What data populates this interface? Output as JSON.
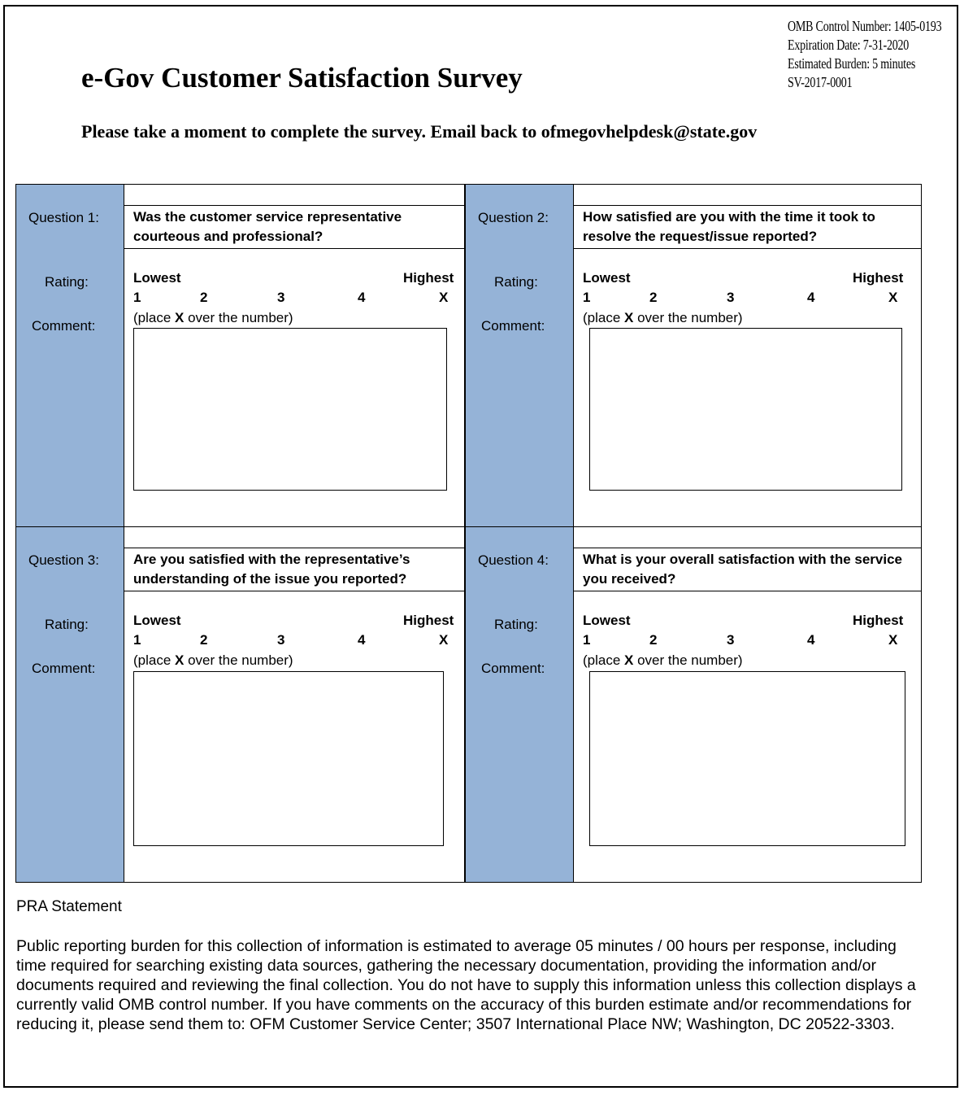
{
  "header": {
    "omb": [
      "OMB Control Number: 1405-0193",
      "Expiration Date: 7-31-2020",
      "Estimated Burden: 5 minutes",
      "SV-2017-0001"
    ],
    "title": "e-Gov Customer Satisfaction Survey",
    "subtitle": "Please take a moment to complete the survey. Email back to ofmegovhelpdesk@state.gov"
  },
  "labels": {
    "rating": "Rating:",
    "comment": "Comment:",
    "lowest": "Lowest",
    "highest": "Highest",
    "scale": [
      "1",
      "2",
      "3",
      "4",
      "X"
    ],
    "instruction_pre": "(place ",
    "instruction_x": "X",
    "instruction_post": " over the number)"
  },
  "questions": [
    {
      "label": "Question 1:",
      "text": [
        "Was the customer service representative",
        "courteous and professional?"
      ],
      "comment": ""
    },
    {
      "label": "Question 2:",
      "text": [
        "How satisfied are you with the time it took to",
        "resolve the request/issue reported?"
      ],
      "comment": ""
    },
    {
      "label": "Question 3:",
      "text": [
        "Are you satisfied with the representative’s",
        "understanding of the issue you reported?"
      ],
      "comment": ""
    },
    {
      "label": "Question 4:",
      "text": [
        "What is your overall satisfaction with the service",
        "you received?"
      ],
      "comment": ""
    }
  ],
  "label_color": "#95b3d7",
  "pra": {
    "title": "PRA Statement",
    "body": "Public reporting burden for this collection of information is estimated to average 05 minutes / 00 hours per response, including time required for searching existing data sources, gathering the necessary documentation, providing the information and/or documents required and reviewing the final collection. You do not have to supply this information unless this collection displays a currently valid OMB control number. If you have comments on the accuracy of this burden estimate and/or recommendations for reducing it, please send them to: OFM Customer Service Center; 3507 International Place NW; Washington, DC 20522-3303."
  }
}
